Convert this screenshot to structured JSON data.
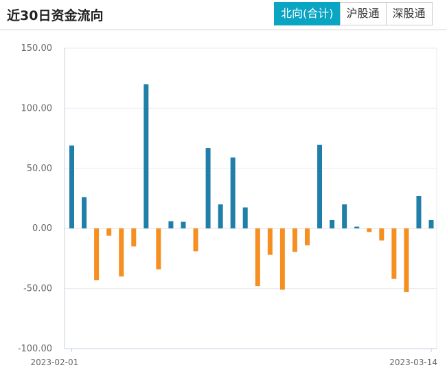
{
  "header": {
    "title": "近30日资金流向",
    "tabs": [
      {
        "label": "北向(合计)",
        "active": true
      },
      {
        "label": "沪股通",
        "active": false
      },
      {
        "label": "深股通",
        "active": false
      }
    ]
  },
  "colors": {
    "accent": "#0aa5c3",
    "positive": "#207fa8",
    "negative": "#f68f21",
    "grid": "#e6e9f0",
    "axis": "#c7cfe0"
  },
  "chart_data": {
    "type": "bar",
    "ylim": [
      -100,
      150
    ],
    "yticks": [
      150,
      100,
      50,
      0,
      -50,
      -100
    ],
    "ytick_labels": [
      "150.00",
      "100.00",
      "50.00",
      "0.00",
      "-50.00",
      "-100.00"
    ],
    "x_start_label": "2023-02-01",
    "x_end_label": "2023-03-14",
    "values": [
      69,
      26,
      -43,
      -6,
      -40,
      -15,
      120,
      -34,
      6,
      5.5,
      -19,
      67,
      20,
      59,
      17.5,
      -48,
      -22,
      -51,
      -19.5,
      -14,
      69.5,
      7,
      20,
      1.5,
      -3,
      -10,
      -42,
      -53,
      27,
      7
    ]
  }
}
